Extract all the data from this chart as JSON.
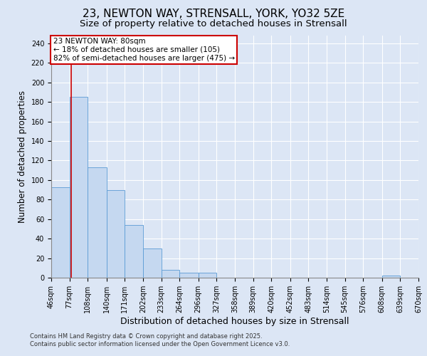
{
  "title1": "23, NEWTON WAY, STRENSALL, YORK, YO32 5ZE",
  "title2": "Size of property relative to detached houses in Strensall",
  "bar_values": [
    93,
    185,
    113,
    90,
    54,
    30,
    8,
    5,
    5,
    0,
    0,
    0,
    0,
    0,
    0,
    0,
    0,
    0,
    2,
    0
  ],
  "bin_edges": [
    46,
    77,
    108,
    140,
    171,
    202,
    233,
    264,
    296,
    327,
    358,
    389,
    420,
    452,
    483,
    514,
    545,
    576,
    608,
    639,
    670
  ],
  "x_tick_labels": [
    "46sqm",
    "77sqm",
    "108sqm",
    "140sqm",
    "171sqm",
    "202sqm",
    "233sqm",
    "264sqm",
    "296sqm",
    "327sqm",
    "358sqm",
    "389sqm",
    "420sqm",
    "452sqm",
    "483sqm",
    "514sqm",
    "545sqm",
    "576sqm",
    "608sqm",
    "639sqm",
    "670sqm"
  ],
  "xlabel": "Distribution of detached houses by size in Strensall",
  "ylabel": "Number of detached properties",
  "bar_color": "#c5d8f0",
  "bar_edgecolor": "#5b9bd5",
  "background_color": "#dce6f5",
  "red_line_x": 80,
  "annotation_title": "23 NEWTON WAY: 80sqm",
  "annotation_line1": "← 18% of detached houses are smaller (105)",
  "annotation_line2": "82% of semi-detached houses are larger (475) →",
  "annotation_box_color": "#ffffff",
  "annotation_border_color": "#cc0000",
  "ylim": [
    0,
    248
  ],
  "yticks": [
    0,
    20,
    40,
    60,
    80,
    100,
    120,
    140,
    160,
    180,
    200,
    220,
    240
  ],
  "footer_line1": "Contains HM Land Registry data © Crown copyright and database right 2025.",
  "footer_line2": "Contains public sector information licensed under the Open Government Licence v3.0.",
  "title1_fontsize": 11,
  "title2_fontsize": 9.5,
  "annotation_fontsize": 7.5,
  "tick_fontsize": 7,
  "ylabel_fontsize": 8.5,
  "xlabel_fontsize": 9,
  "footer_fontsize": 6
}
